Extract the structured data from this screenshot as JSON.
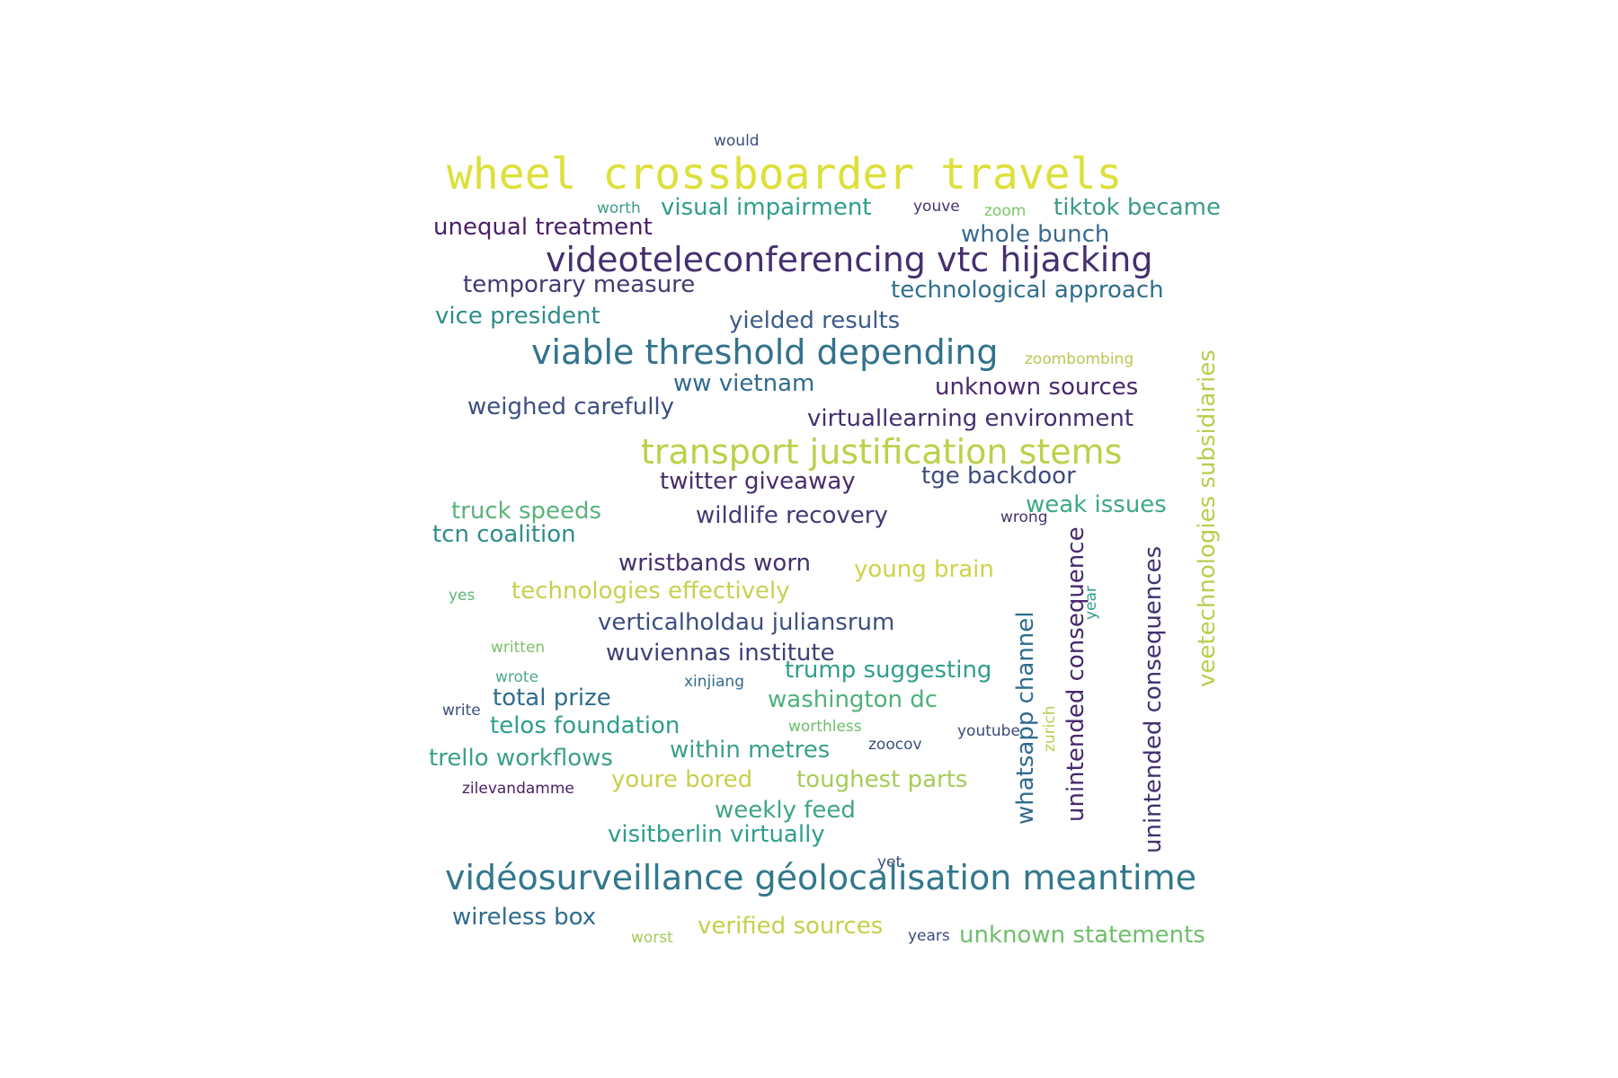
{
  "words": [
    {
      "text": "would",
      "color": "#3b4f7a"
    },
    {
      "text": "wheel crossboarder travels",
      "color": "#dce03a"
    },
    {
      "text": "worth",
      "color": "#3e9b8a"
    },
    {
      "text": "visual impairment",
      "color": "#2f9e8d"
    },
    {
      "text": "youve",
      "color": "#46326f"
    },
    {
      "text": "zoom",
      "color": "#7cc66b"
    },
    {
      "text": "tiktok became",
      "color": "#3c9b8c"
    },
    {
      "text": "unequal treatment",
      "color": "#4a1f65"
    },
    {
      "text": "whole bunch",
      "color": "#3b6a8e"
    },
    {
      "text": "videoteleconferencing vtc hijacking",
      "color": "#44306f"
    },
    {
      "text": "temporary measure",
      "color": "#443a73"
    },
    {
      "text": "technological approach",
      "color": "#2f6f8d"
    },
    {
      "text": "vice president",
      "color": "#2f8c8c"
    },
    {
      "text": "yielded results",
      "color": "#3c5b89"
    },
    {
      "text": "viable threshold depending",
      "color": "#33728c"
    },
    {
      "text": "zoombombing",
      "color": "#bcc652"
    },
    {
      "text": "ww vietnam",
      "color": "#2f6b8d"
    },
    {
      "text": "unknown sources",
      "color": "#48286c"
    },
    {
      "text": "weighed carefully",
      "color": "#3d4f80"
    },
    {
      "text": "virtuallearning environment",
      "color": "#44306f"
    },
    {
      "text": "transport justification stems",
      "color": "#bcd04a"
    },
    {
      "text": "twitter giveaway",
      "color": "#472d6b"
    },
    {
      "text": "tge backdoor",
      "color": "#3f4a7d"
    },
    {
      "text": "truck speeds",
      "color": "#5ab37a"
    },
    {
      "text": "wildlife recovery",
      "color": "#413a75"
    },
    {
      "text": "wrong",
      "color": "#46326f"
    },
    {
      "text": "weak issues",
      "color": "#3ea886"
    },
    {
      "text": "tcn coalition",
      "color": "#2f8c8c"
    },
    {
      "text": "wristbands worn",
      "color": "#452f6e"
    },
    {
      "text": "young brain",
      "color": "#cfd248"
    },
    {
      "text": "yes",
      "color": "#5eb670"
    },
    {
      "text": "technologies effectively",
      "color": "#c8cf50"
    },
    {
      "text": "verticalholdau juliansrum",
      "color": "#3d4f80"
    },
    {
      "text": "written",
      "color": "#7cbf6a"
    },
    {
      "text": "wuviennas institute",
      "color": "#3f3f78"
    },
    {
      "text": "trump suggesting",
      "color": "#2f9e8d"
    },
    {
      "text": "wrote",
      "color": "#4ca88a"
    },
    {
      "text": "xinjiang",
      "color": "#356b8f"
    },
    {
      "text": "total prize",
      "color": "#2f6b8d"
    },
    {
      "text": "washington dc",
      "color": "#4eb07a"
    },
    {
      "text": "write",
      "color": "#3b4f7a"
    },
    {
      "text": "telos foundation",
      "color": "#2f9e8d"
    },
    {
      "text": "worthless",
      "color": "#6ebd6a"
    },
    {
      "text": "youtube",
      "color": "#3b4a7a"
    },
    {
      "text": "zoocov",
      "color": "#3b4f7a"
    },
    {
      "text": "within metres",
      "color": "#3aa08a"
    },
    {
      "text": "trello workflows",
      "color": "#3aa08a"
    },
    {
      "text": "youre bored",
      "color": "#c8d04a"
    },
    {
      "text": "toughest parts",
      "color": "#a6cc58"
    },
    {
      "text": "zilevandamme",
      "color": "#4a1f65"
    },
    {
      "text": "weekly feed",
      "color": "#3fa684"
    },
    {
      "text": "visitberlin virtually",
      "color": "#2f9e8d"
    },
    {
      "text": "yet",
      "color": "#3b4f7a"
    },
    {
      "text": "vidéosurveillance géolocalisation meantime",
      "color": "#32788c"
    },
    {
      "text": "wireless box",
      "color": "#2f6b8d"
    },
    {
      "text": "verified sources",
      "color": "#c4cf4a"
    },
    {
      "text": "worst",
      "color": "#a6c85a"
    },
    {
      "text": "years",
      "color": "#3d4a80"
    },
    {
      "text": "unknown statements",
      "color": "#6fbf6a"
    },
    {
      "text": "veetechnologies subsidiaries",
      "color": "#b6cf4e"
    },
    {
      "text": "unintended consequences",
      "color": "#44306f"
    },
    {
      "text": "unintended consequence",
      "color": "#48286c"
    },
    {
      "text": "whatsapp channel",
      "color": "#2f6b8d"
    },
    {
      "text": "year",
      "color": "#2f9e8d"
    },
    {
      "text": "zurich",
      "color": "#b8cf52"
    }
  ]
}
